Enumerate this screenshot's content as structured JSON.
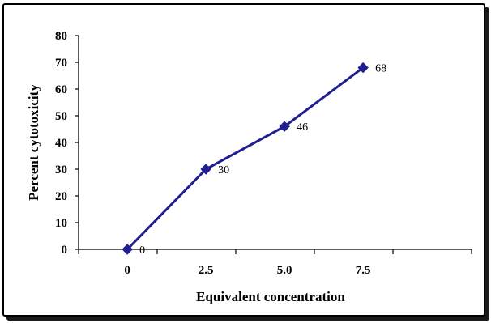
{
  "chart_data": {
    "type": "line",
    "categories": [
      "0",
      "2.5",
      "5.0",
      "7.5"
    ],
    "series": [
      {
        "values": [
          0,
          30,
          46,
          68
        ],
        "color": "#1f1f8f"
      }
    ],
    "data_labels": [
      "0",
      "30",
      "46",
      "68"
    ],
    "xlabel": "Equivalent concentration",
    "ylabel": "Percent cytotoxicity",
    "ylim": [
      0,
      80
    ],
    "yticks": [
      0,
      10,
      20,
      30,
      40,
      50,
      60,
      70,
      80
    ],
    "grid": false,
    "legend": "none",
    "marker": "diamond"
  }
}
